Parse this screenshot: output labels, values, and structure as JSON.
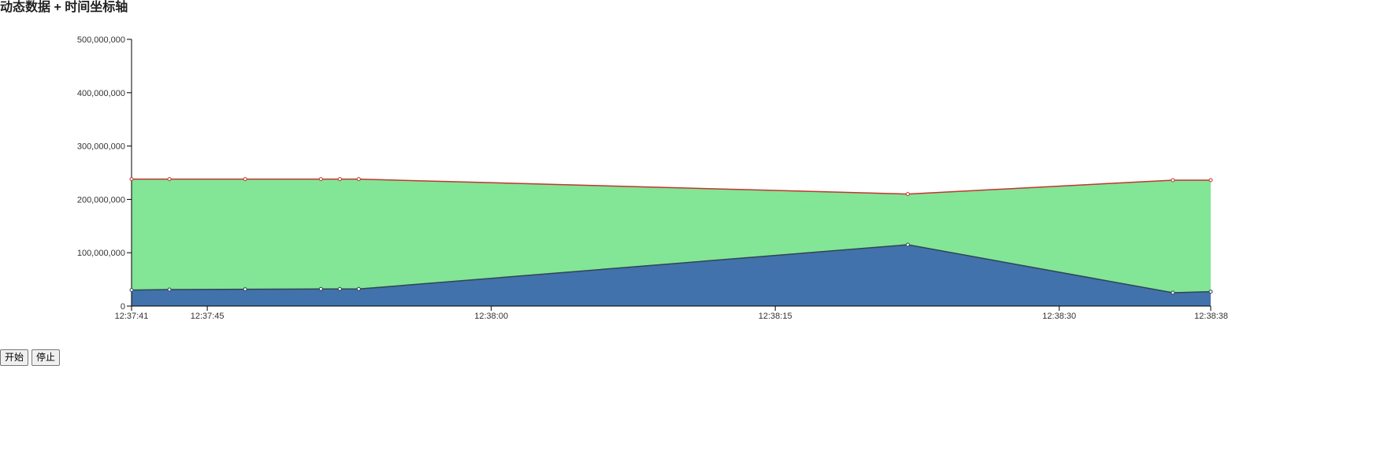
{
  "page": {
    "title": "动态数据 + 时间坐标轴"
  },
  "controls": {
    "start_label": "开始",
    "stop_label": "停止"
  },
  "chart_data": {
    "type": "area",
    "stacked": true,
    "title": "",
    "xlabel": "",
    "ylabel": "",
    "x_type": "time",
    "x": [
      "12:37:41",
      "12:37:43",
      "12:37:47",
      "12:37:51",
      "12:37:52",
      "12:37:53",
      "12:38:22",
      "12:38:36",
      "12:38:38"
    ],
    "xlim": [
      "12:37:41",
      "12:38:38"
    ],
    "x_ticks": [
      "12:37:41",
      "12:37:45",
      "12:38:00",
      "12:38:15",
      "12:38:30",
      "12:38:38"
    ],
    "ylim": [
      0,
      500000000
    ],
    "y_ticks": [
      0,
      100000000,
      200000000,
      300000000,
      400000000,
      500000000
    ],
    "y_tick_labels": [
      "0",
      "100,000,000",
      "200,000,000",
      "300,000,000",
      "400,000,000",
      "500,000,000"
    ],
    "grid": false,
    "series": [
      {
        "values": [
          30000000,
          31000000,
          31500000,
          32000000,
          32000000,
          32000000,
          115000000,
          25000000,
          27000000
        ],
        "fill": "#4272ab",
        "stroke": "#2f4554"
      },
      {
        "values": [
          208000000,
          207000000,
          206500000,
          206000000,
          206000000,
          206000000,
          95000000,
          211000000,
          209000000
        ],
        "fill": "#83e596",
        "stroke": "#c23531"
      }
    ]
  }
}
